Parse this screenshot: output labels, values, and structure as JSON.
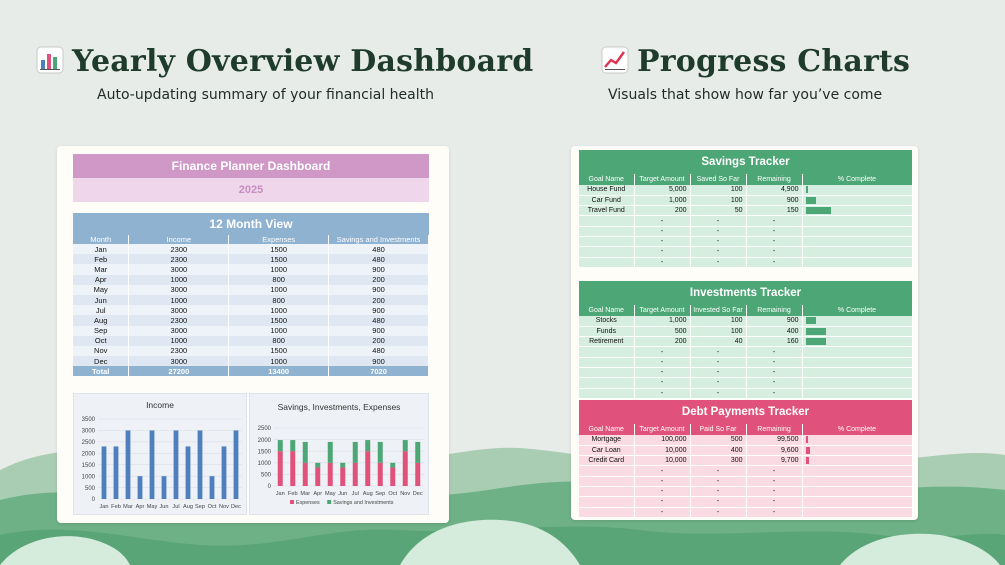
{
  "left": {
    "title": "Yearly Overview Dashboard",
    "subtitle": "Auto-updating summary of your financial health",
    "icon": "bar-chart-icon"
  },
  "right": {
    "title": "Progress Charts",
    "subtitle": "Visuals that show how far you’ve come",
    "icon": "trend-up-icon"
  },
  "dashboard": {
    "title": "Finance Planner Dashboard",
    "year": "2025",
    "month_view_title": "12 Month View",
    "columns": [
      "Month",
      "Income",
      "Expenses",
      "Savings and Investments"
    ],
    "rows": [
      [
        "Jan",
        "2300",
        "1500",
        "480"
      ],
      [
        "Feb",
        "2300",
        "1500",
        "480"
      ],
      [
        "Mar",
        "3000",
        "1000",
        "900"
      ],
      [
        "Apr",
        "1000",
        "800",
        "200"
      ],
      [
        "May",
        "3000",
        "1000",
        "900"
      ],
      [
        "Jun",
        "1000",
        "800",
        "200"
      ],
      [
        "Jul",
        "3000",
        "1000",
        "900"
      ],
      [
        "Aug",
        "2300",
        "1500",
        "480"
      ],
      [
        "Sep",
        "3000",
        "1000",
        "900"
      ],
      [
        "Oct",
        "1000",
        "800",
        "200"
      ],
      [
        "Nov",
        "2300",
        "1500",
        "480"
      ],
      [
        "Dec",
        "3000",
        "1000",
        "900"
      ]
    ],
    "total": [
      "Total",
      "27200",
      "13400",
      "7020"
    ]
  },
  "chart_data": [
    {
      "type": "bar",
      "title": "Income",
      "categories": [
        "Jan",
        "Feb",
        "Mar",
        "Apr",
        "May",
        "Jun",
        "Jul",
        "Aug",
        "Sep",
        "Oct",
        "Nov",
        "Dec"
      ],
      "values": [
        2300,
        2300,
        3000,
        1000,
        3000,
        1000,
        3000,
        2300,
        3000,
        1000,
        2300,
        3000
      ],
      "ylim": [
        0,
        3500
      ],
      "yticks": [
        0,
        500,
        1000,
        1500,
        2000,
        2500,
        3000,
        3500
      ],
      "color": "#4f7fbf"
    },
    {
      "type": "bar",
      "stacked": true,
      "title": "Savings, Investments, Expenses",
      "categories": [
        "Jan",
        "Feb",
        "Mar",
        "Apr",
        "May",
        "Jun",
        "Jul",
        "Aug",
        "Sep",
        "Oct",
        "Nov",
        "Dec"
      ],
      "series": [
        {
          "name": "Expenses",
          "values": [
            1500,
            1500,
            1000,
            800,
            1000,
            800,
            1000,
            1500,
            1000,
            800,
            1500,
            1000
          ],
          "color": "#e0527b"
        },
        {
          "name": "Savings and Investments",
          "values": [
            480,
            480,
            900,
            200,
            900,
            200,
            900,
            480,
            900,
            200,
            480,
            900
          ],
          "color": "#4da676"
        }
      ],
      "ylim": [
        0,
        2500
      ],
      "yticks": [
        0,
        500,
        1000,
        1500,
        2000,
        2500
      ],
      "legend": "bottom"
    }
  ],
  "trackers": [
    {
      "title": "Savings Tracker",
      "theme": "green",
      "columns": [
        "Goal Name",
        "Target Amount",
        "Saved So Far",
        "Remaining",
        "% Complete"
      ],
      "rows": [
        {
          "name": "House Fund",
          "target": "5,000",
          "done": "100",
          "remaining": "4,900",
          "pct": 0.02
        },
        {
          "name": "Car Fund",
          "target": "1,000",
          "done": "100",
          "remaining": "900",
          "pct": 0.1
        },
        {
          "name": "Travel Fund",
          "target": "200",
          "done": "50",
          "remaining": "150",
          "pct": 0.25
        }
      ],
      "empty_rows": 5
    },
    {
      "title": "Investments Tracker",
      "theme": "green",
      "columns": [
        "Goal Name",
        "Target Amount",
        "Invested So Far",
        "Remaining",
        "% Complete"
      ],
      "rows": [
        {
          "name": "Stocks",
          "target": "1,000",
          "done": "100",
          "remaining": "900",
          "pct": 0.1
        },
        {
          "name": "Funds",
          "target": "500",
          "done": "100",
          "remaining": "400",
          "pct": 0.2
        },
        {
          "name": "Retirement",
          "target": "200",
          "done": "40",
          "remaining": "160",
          "pct": 0.2
        }
      ],
      "empty_rows": 5
    },
    {
      "title": "Debt Payments Tracker",
      "theme": "pink",
      "columns": [
        "Goal Name",
        "Target Amount",
        "Paid So Far",
        "Remaining",
        "% Complete"
      ],
      "rows": [
        {
          "name": "Mortgage",
          "target": "100,000",
          "done": "500",
          "remaining": "99,500",
          "pct": 0.005
        },
        {
          "name": "Car Loan",
          "target": "10,000",
          "done": "400",
          "remaining": "9,600",
          "pct": 0.04
        },
        {
          "name": "Credit Card",
          "target": "10,000",
          "done": "300",
          "remaining": "9,700",
          "pct": 0.03
        }
      ],
      "empty_rows": 5
    }
  ],
  "empty_cell": "-"
}
